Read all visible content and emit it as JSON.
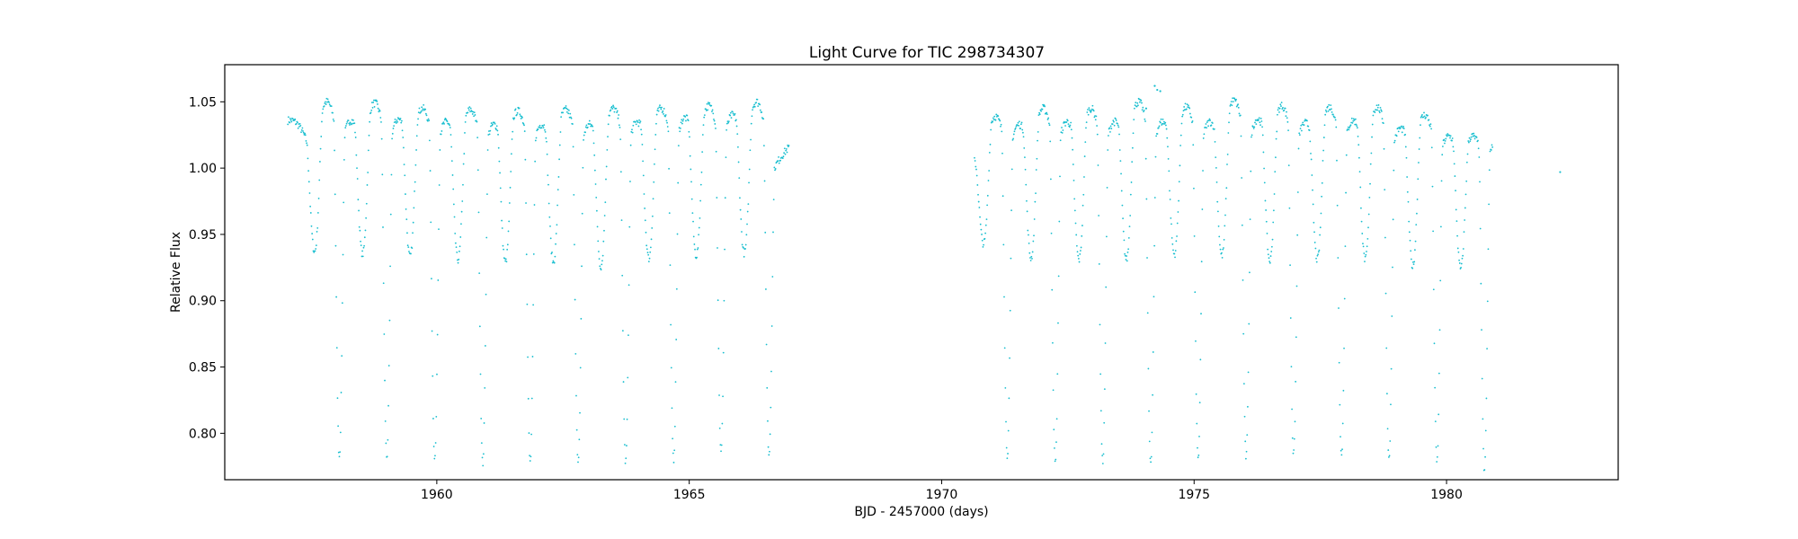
{
  "chart_data": {
    "type": "scatter",
    "title": "Light Curve for TIC 298734307",
    "xlabel": "BJD - 2457000 (days)",
    "ylabel": "Relative Flux",
    "xlim": [
      1955.8,
      1983.4
    ],
    "ylim": [
      0.765,
      1.078
    ],
    "xticks": [
      1960,
      1965,
      1970,
      1975,
      1980
    ],
    "xtick_labels": [
      "1960",
      "1965",
      "1970",
      "1975",
      "1980"
    ],
    "yticks": [
      0.8,
      0.85,
      0.9,
      0.95,
      1.0,
      1.05
    ],
    "ytick_labels": [
      "0.80",
      "0.85",
      "0.90",
      "0.95",
      "1.00",
      "1.05"
    ],
    "grid": false,
    "marker_color": "#17becf",
    "series": [
      {
        "segments": [
          {
            "x_start": 1957.05,
            "x_end": 1966.98
          },
          {
            "x_start": 1970.65,
            "x_end": 1980.92
          }
        ],
        "primary_eclipses": [
          {
            "x": 1958.07,
            "y": 0.783
          },
          {
            "x": 1959.01,
            "y": 0.782
          },
          {
            "x": 1959.96,
            "y": 0.781
          },
          {
            "x": 1960.91,
            "y": 0.777
          },
          {
            "x": 1961.85,
            "y": 0.778
          },
          {
            "x": 1962.8,
            "y": 0.776
          },
          {
            "x": 1963.74,
            "y": 0.778
          },
          {
            "x": 1964.69,
            "y": 0.78
          },
          {
            "x": 1965.63,
            "y": 0.785
          },
          {
            "x": 1966.58,
            "y": 0.784
          },
          {
            "x": 1971.3,
            "y": 0.784
          },
          {
            "x": 1972.25,
            "y": 0.777
          },
          {
            "x": 1973.19,
            "y": 0.778
          },
          {
            "x": 1974.14,
            "y": 0.776
          },
          {
            "x": 1975.08,
            "y": 0.781
          },
          {
            "x": 1976.03,
            "y": 0.782
          },
          {
            "x": 1976.97,
            "y": 0.784
          },
          {
            "x": 1977.92,
            "y": 0.783
          },
          {
            "x": 1978.86,
            "y": 0.78
          },
          {
            "x": 1979.81,
            "y": 0.778
          },
          {
            "x": 1980.75,
            "y": 0.772
          }
        ],
        "secondary_eclipses": [
          {
            "x": 1957.58,
            "y": 0.937
          },
          {
            "x": 1958.53,
            "y": 0.935
          },
          {
            "x": 1959.47,
            "y": 0.933
          },
          {
            "x": 1960.42,
            "y": 0.931
          },
          {
            "x": 1961.36,
            "y": 0.929
          },
          {
            "x": 1962.31,
            "y": 0.929
          },
          {
            "x": 1963.25,
            "y": 0.926
          },
          {
            "x": 1964.2,
            "y": 0.932
          },
          {
            "x": 1965.14,
            "y": 0.934
          },
          {
            "x": 1966.09,
            "y": 0.936
          },
          {
            "x": 1970.83,
            "y": 0.943
          },
          {
            "x": 1971.77,
            "y": 0.932
          },
          {
            "x": 1972.72,
            "y": 0.931
          },
          {
            "x": 1973.66,
            "y": 0.931
          },
          {
            "x": 1974.61,
            "y": 0.935
          },
          {
            "x": 1975.55,
            "y": 0.934
          },
          {
            "x": 1976.5,
            "y": 0.93
          },
          {
            "x": 1977.44,
            "y": 0.931
          },
          {
            "x": 1978.39,
            "y": 0.931
          },
          {
            "x": 1979.33,
            "y": 0.926
          },
          {
            "x": 1980.28,
            "y": 0.924
          }
        ],
        "maxima_before_primary": [
          1.05,
          1.049,
          1.045,
          1.044,
          1.043,
          1.044,
          1.045,
          1.045,
          1.047,
          1.05,
          1.039,
          1.045,
          1.045,
          1.05,
          1.046,
          1.051,
          1.047,
          1.046,
          1.046,
          1.04,
          1.024
        ],
        "maxima_after_primary": [
          1.036,
          1.037,
          1.035,
          1.033,
          1.033,
          1.033,
          1.035,
          1.038,
          1.04,
          1.046,
          1.033,
          1.035,
          1.035,
          1.035,
          1.035,
          1.037,
          1.034,
          1.036,
          1.03,
          1.024,
          1.018
        ],
        "outliers": [
          {
            "x": 1974.22,
            "y": 1.062
          },
          {
            "x": 1974.27,
            "y": 1.059
          },
          {
            "x": 1974.33,
            "y": 1.058
          },
          {
            "x": 1974.05,
            "y": 1.045
          },
          {
            "x": 1982.25,
            "y": 0.997
          }
        ]
      }
    ]
  }
}
